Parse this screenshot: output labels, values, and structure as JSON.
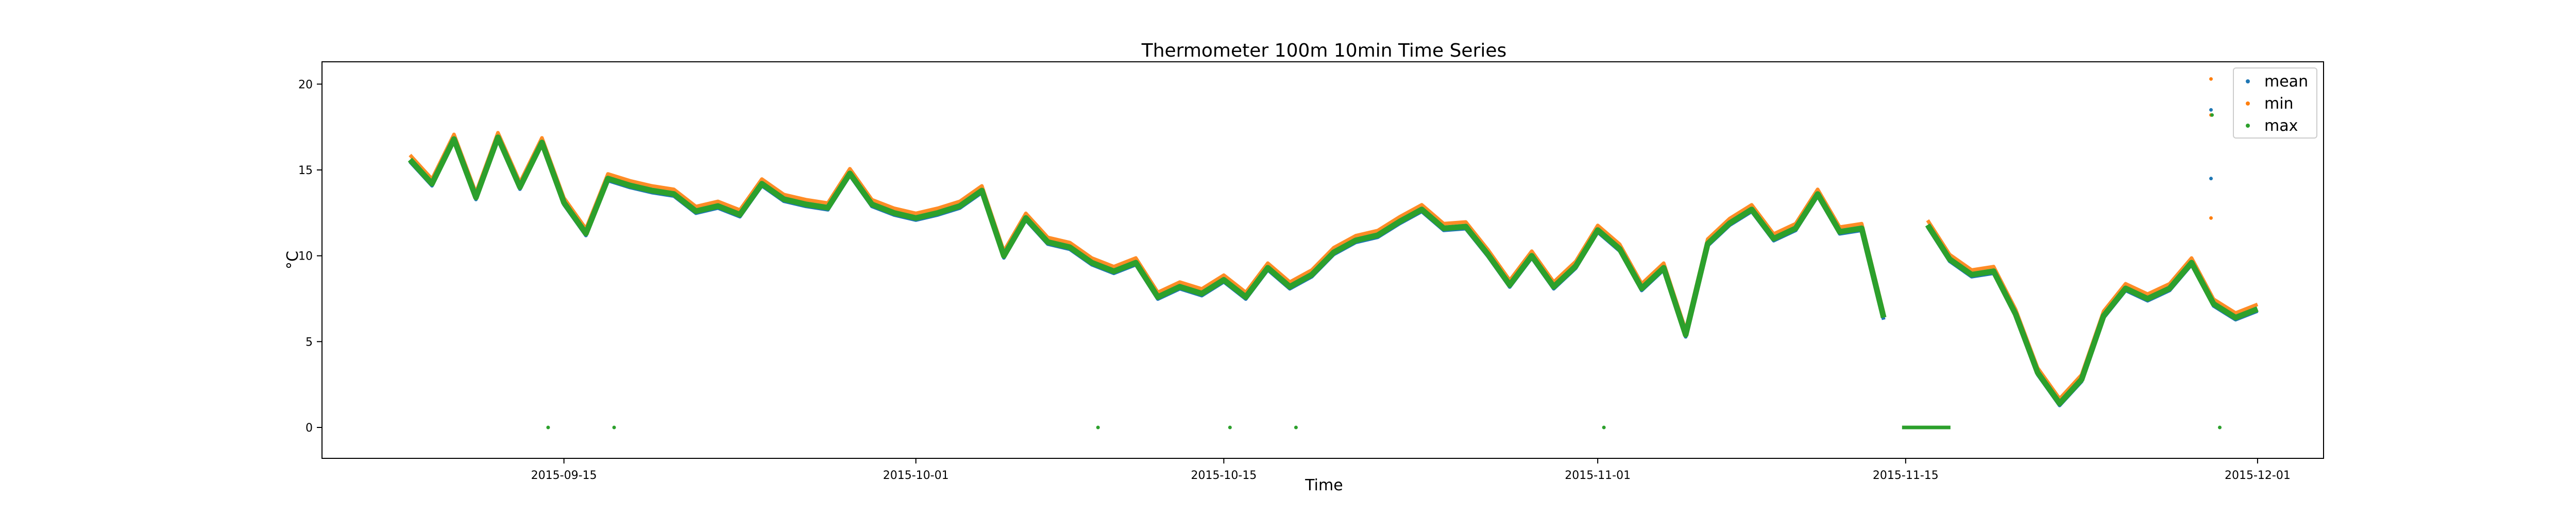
{
  "chart_data": {
    "type": "scatter",
    "title": "Thermometer 100m 10min Time Series",
    "xlabel": "Time",
    "ylabel": "°C",
    "x_range": [
      "2015-09-04",
      "2015-12-04"
    ],
    "ylim": [
      -1.8,
      21.3
    ],
    "x_ticks": [
      "2015-09-15",
      "2015-10-01",
      "2015-10-15",
      "2015-11-01",
      "2015-11-15",
      "2015-12-01"
    ],
    "y_ticks": [
      0,
      5,
      10,
      15,
      20
    ],
    "grid": false,
    "legend_position": "top-right",
    "colors": {
      "mean": "#1f77b4",
      "min": "#ff7f0e",
      "max": "#2ca02c"
    },
    "series": [
      {
        "name": "mean",
        "color": "#1f77b4"
      },
      {
        "name": "min",
        "color": "#ff7f0e"
      },
      {
        "name": "max",
        "color": "#2ca02c"
      }
    ],
    "trace": [
      [
        "2015-09-08",
        15.6
      ],
      [
        "2015-09-09",
        14.2
      ],
      [
        "2015-09-10",
        16.8
      ],
      [
        "2015-09-11",
        13.4
      ],
      [
        "2015-09-12",
        16.9
      ],
      [
        "2015-09-13",
        14.0
      ],
      [
        "2015-09-14",
        16.6
      ],
      [
        "2015-09-15",
        13.1
      ],
      [
        "2015-09-16",
        11.3
      ],
      [
        "2015-09-17",
        14.5
      ],
      [
        "2015-09-18",
        14.1
      ],
      [
        "2015-09-19",
        13.8
      ],
      [
        "2015-09-20",
        13.6
      ],
      [
        "2015-09-21",
        12.6
      ],
      [
        "2015-09-22",
        12.9
      ],
      [
        "2015-09-23",
        12.4
      ],
      [
        "2015-09-24",
        14.2
      ],
      [
        "2015-09-25",
        13.3
      ],
      [
        "2015-09-26",
        13.0
      ],
      [
        "2015-09-27",
        12.8
      ],
      [
        "2015-09-28",
        14.8
      ],
      [
        "2015-09-29",
        13.0
      ],
      [
        "2015-09-30",
        12.5
      ],
      [
        "2015-10-01",
        12.2
      ],
      [
        "2015-10-02",
        12.5
      ],
      [
        "2015-10-03",
        12.9
      ],
      [
        "2015-10-04",
        13.8
      ],
      [
        "2015-10-05",
        10.0
      ],
      [
        "2015-10-06",
        12.2
      ],
      [
        "2015-10-07",
        10.8
      ],
      [
        "2015-10-08",
        10.5
      ],
      [
        "2015-10-09",
        9.6
      ],
      [
        "2015-10-10",
        9.1
      ],
      [
        "2015-10-11",
        9.6
      ],
      [
        "2015-10-12",
        7.6
      ],
      [
        "2015-10-13",
        8.2
      ],
      [
        "2015-10-14",
        7.8
      ],
      [
        "2015-10-15",
        8.6
      ],
      [
        "2015-10-16",
        7.6
      ],
      [
        "2015-10-17",
        9.3
      ],
      [
        "2015-10-18",
        8.2
      ],
      [
        "2015-10-19",
        8.9
      ],
      [
        "2015-10-20",
        10.2
      ],
      [
        "2015-10-21",
        10.9
      ],
      [
        "2015-10-22",
        11.2
      ],
      [
        "2015-10-23",
        12.0
      ],
      [
        "2015-10-24",
        12.7
      ],
      [
        "2015-10-25",
        11.6
      ],
      [
        "2015-10-26",
        11.7
      ],
      [
        "2015-10-27",
        10.1
      ],
      [
        "2015-10-28",
        8.3
      ],
      [
        "2015-10-29",
        10.0
      ],
      [
        "2015-10-30",
        8.2
      ],
      [
        "2015-10-31",
        9.4
      ],
      [
        "2015-11-01",
        11.5
      ],
      [
        "2015-11-02",
        10.4
      ],
      [
        "2015-11-03",
        8.1
      ],
      [
        "2015-11-04",
        9.3
      ],
      [
        "2015-11-05",
        5.4
      ],
      [
        "2015-11-06",
        10.7
      ],
      [
        "2015-11-07",
        11.9
      ],
      [
        "2015-11-08",
        12.7
      ],
      [
        "2015-11-09",
        11.0
      ],
      [
        "2015-11-10",
        11.6
      ],
      [
        "2015-11-11",
        13.6
      ],
      [
        "2015-11-12",
        11.4
      ],
      [
        "2015-11-13",
        11.6
      ],
      [
        "2015-11-14",
        6.4
      ],
      [
        "2015-11-15",
        0.0
      ],
      [
        "2015-11-16",
        11.8
      ],
      [
        "2015-11-17",
        9.8
      ],
      [
        "2015-11-18",
        8.9
      ],
      [
        "2015-11-19",
        9.1
      ],
      [
        "2015-11-20",
        6.6
      ],
      [
        "2015-11-21",
        3.2
      ],
      [
        "2015-11-22",
        1.4
      ],
      [
        "2015-11-23",
        2.8
      ],
      [
        "2015-11-24",
        6.5
      ],
      [
        "2015-11-25",
        8.1
      ],
      [
        "2015-11-26",
        7.5
      ],
      [
        "2015-11-27",
        8.1
      ],
      [
        "2015-11-28",
        9.6
      ],
      [
        "2015-11-29",
        7.2
      ],
      [
        "2015-11-30",
        6.4
      ],
      [
        "2015-12-01",
        6.9
      ]
    ],
    "zero_markers": [
      "2015-09-14",
      "2015-09-17",
      "2015-10-09",
      "2015-10-15",
      "2015-10-18",
      "2015-11-01",
      "2015-11-29"
    ],
    "outliers_min": [
      [
        "2015-11-29",
        20.3
      ],
      [
        "2015-11-29",
        18.2
      ],
      [
        "2015-11-29",
        12.2
      ]
    ],
    "outliers_mean": [
      [
        "2015-11-29",
        18.5
      ],
      [
        "2015-11-29",
        14.5
      ]
    ],
    "outliers_max": [
      [
        "2015-11-29",
        18.2
      ]
    ]
  }
}
